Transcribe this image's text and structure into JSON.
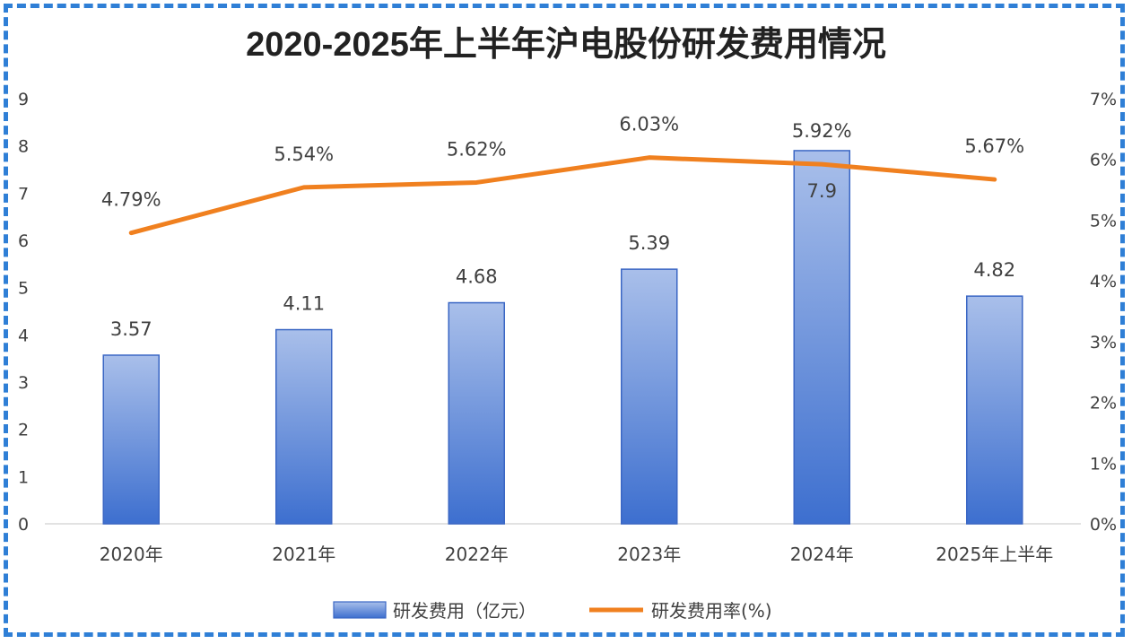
{
  "chart_data": {
    "type": "bar",
    "title": "2020-2025年上半年沪电股份研发费用情况",
    "categories": [
      "2020年",
      "2021年",
      "2022年",
      "2023年",
      "2024年",
      "2025年上半年"
    ],
    "series": [
      {
        "name": "研发费用（亿元）",
        "type": "bar",
        "axis": "left",
        "values": [
          3.57,
          4.11,
          4.68,
          5.39,
          7.9,
          4.82
        ],
        "labels": [
          "3.57",
          "4.11",
          "4.68",
          "5.39",
          "7.9",
          "4.82"
        ],
        "color_top": "#a9bfea",
        "color_bottom": "#3d6fcf"
      },
      {
        "name": "研发费用率(%)",
        "type": "line",
        "axis": "right",
        "values": [
          4.79,
          5.54,
          5.62,
          6.03,
          5.92,
          5.67
        ],
        "labels": [
          "4.79%",
          "5.54%",
          "5.62%",
          "6.03%",
          "5.92%",
          "5.67%"
        ],
        "color": "#f0801f"
      }
    ],
    "ylim_left": [
      0,
      9
    ],
    "yticks_left": [
      "0",
      "1",
      "2",
      "3",
      "4",
      "5",
      "6",
      "7",
      "8",
      "9"
    ],
    "ylim_right": [
      0,
      7
    ],
    "yticks_right": [
      "0%",
      "1%",
      "2%",
      "3%",
      "4%",
      "5%",
      "6%",
      "7%"
    ],
    "grid": false,
    "legend_position": "bottom"
  }
}
